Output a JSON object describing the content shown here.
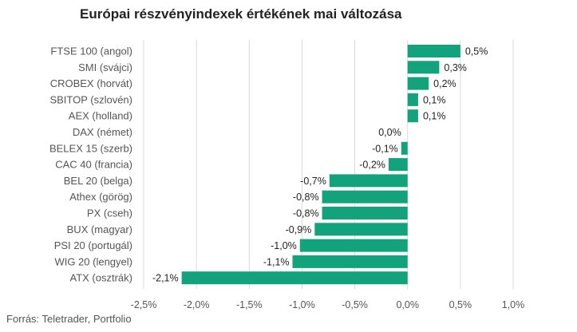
{
  "chart_data": {
    "type": "bar",
    "orientation": "horizontal",
    "title": "Európai részvényindexek értékének mai változása",
    "source": "Forrás: Teletrader, Portfolio",
    "categories": [
      "FTSE 100 (angol)",
      "SMI (svájci)",
      "CROBEX (horvát)",
      "SBITOP (szlovén)",
      "AEX (holland)",
      "DAX (német)",
      "BELEX 15 (szerb)",
      "CAC 40 (francia)",
      "BEL 20 (belga)",
      "Athex (görög)",
      "PX (cseh)",
      "BUX (magyar)",
      "PSI 20 (portugál)",
      "WIG 20 (lengyel)",
      "ATX (osztrák)"
    ],
    "values": [
      0.5,
      0.3,
      0.2,
      0.1,
      0.1,
      0.0,
      -0.06,
      -0.18,
      -0.74,
      -0.81,
      -0.81,
      -0.88,
      -1.02,
      -1.09,
      -2.14
    ],
    "value_labels": [
      "0,5%",
      "0,3%",
      "0,2%",
      "0,1%",
      "0,1%",
      "0,0%",
      "-0,1%",
      "-0,2%",
      "-0,7%",
      "-0,8%",
      "-0,8%",
      "-0,9%",
      "-1,0%",
      "-1,1%",
      "-2,1%"
    ],
    "xlim": [
      -2.5,
      1.0
    ],
    "xticks": [
      -2.5,
      -2.0,
      -1.5,
      -1.0,
      -0.5,
      0.0,
      0.5,
      1.0
    ],
    "xtick_labels": [
      "-2,5%",
      "-2,0%",
      "-1,5%",
      "-1,0%",
      "-0,5%",
      "0,0%",
      "0,5%",
      "1,0%"
    ],
    "grid": true,
    "bar_color": "#13a37c",
    "grid_color": "#d9d9d9"
  }
}
